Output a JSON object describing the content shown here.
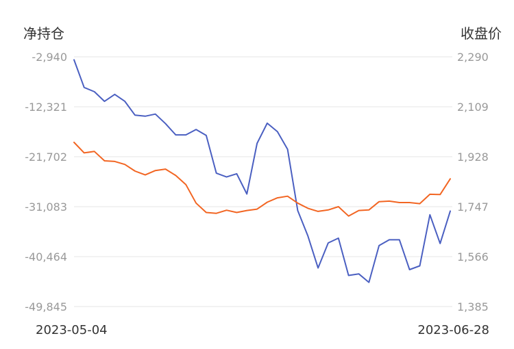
{
  "chart_data": {
    "type": "line",
    "left_axis_title": "净持仓",
    "right_axis_title": "收盘价",
    "left_ticks": [
      "-2,940",
      "-12,321",
      "-21,702",
      "-31,083",
      "-40,464",
      "-49,845"
    ],
    "right_ticks": [
      "2,290",
      "2,109",
      "1,928",
      "1,747",
      "1,566",
      "1,385"
    ],
    "left_range": [
      -49845,
      -2940
    ],
    "right_range": [
      1385,
      2290
    ],
    "x_start_label": "2023-05-04",
    "x_end_label": "2023-06-28",
    "grid": true,
    "series": [
      {
        "axis": "left",
        "color": "#4a5fc1",
        "values": [
          -3500,
          -8700,
          -9500,
          -11300,
          -10000,
          -11300,
          -13900,
          -14100,
          -13700,
          -15500,
          -17600,
          -17600,
          -16600,
          -17700,
          -24800,
          -25500,
          -24900,
          -28700,
          -19200,
          -15400,
          -17000,
          -20300,
          -31800,
          -36600,
          -42600,
          -37900,
          -37000,
          -44000,
          -43700,
          -45300,
          -38400,
          -37300,
          -37300,
          -42900,
          -42200,
          -32600,
          -38000,
          -31900
        ]
      },
      {
        "axis": "right",
        "color": "#f26522",
        "values": [
          1980,
          1942,
          1947,
          1913,
          1911,
          1900,
          1876,
          1862,
          1878,
          1883,
          1860,
          1827,
          1760,
          1726,
          1723,
          1734,
          1726,
          1733,
          1738,
          1763,
          1779,
          1785,
          1760,
          1741,
          1730,
          1735,
          1747,
          1713,
          1733,
          1735,
          1765,
          1767,
          1762,
          1762,
          1758,
          1792,
          1791,
          1848
        ]
      }
    ]
  }
}
